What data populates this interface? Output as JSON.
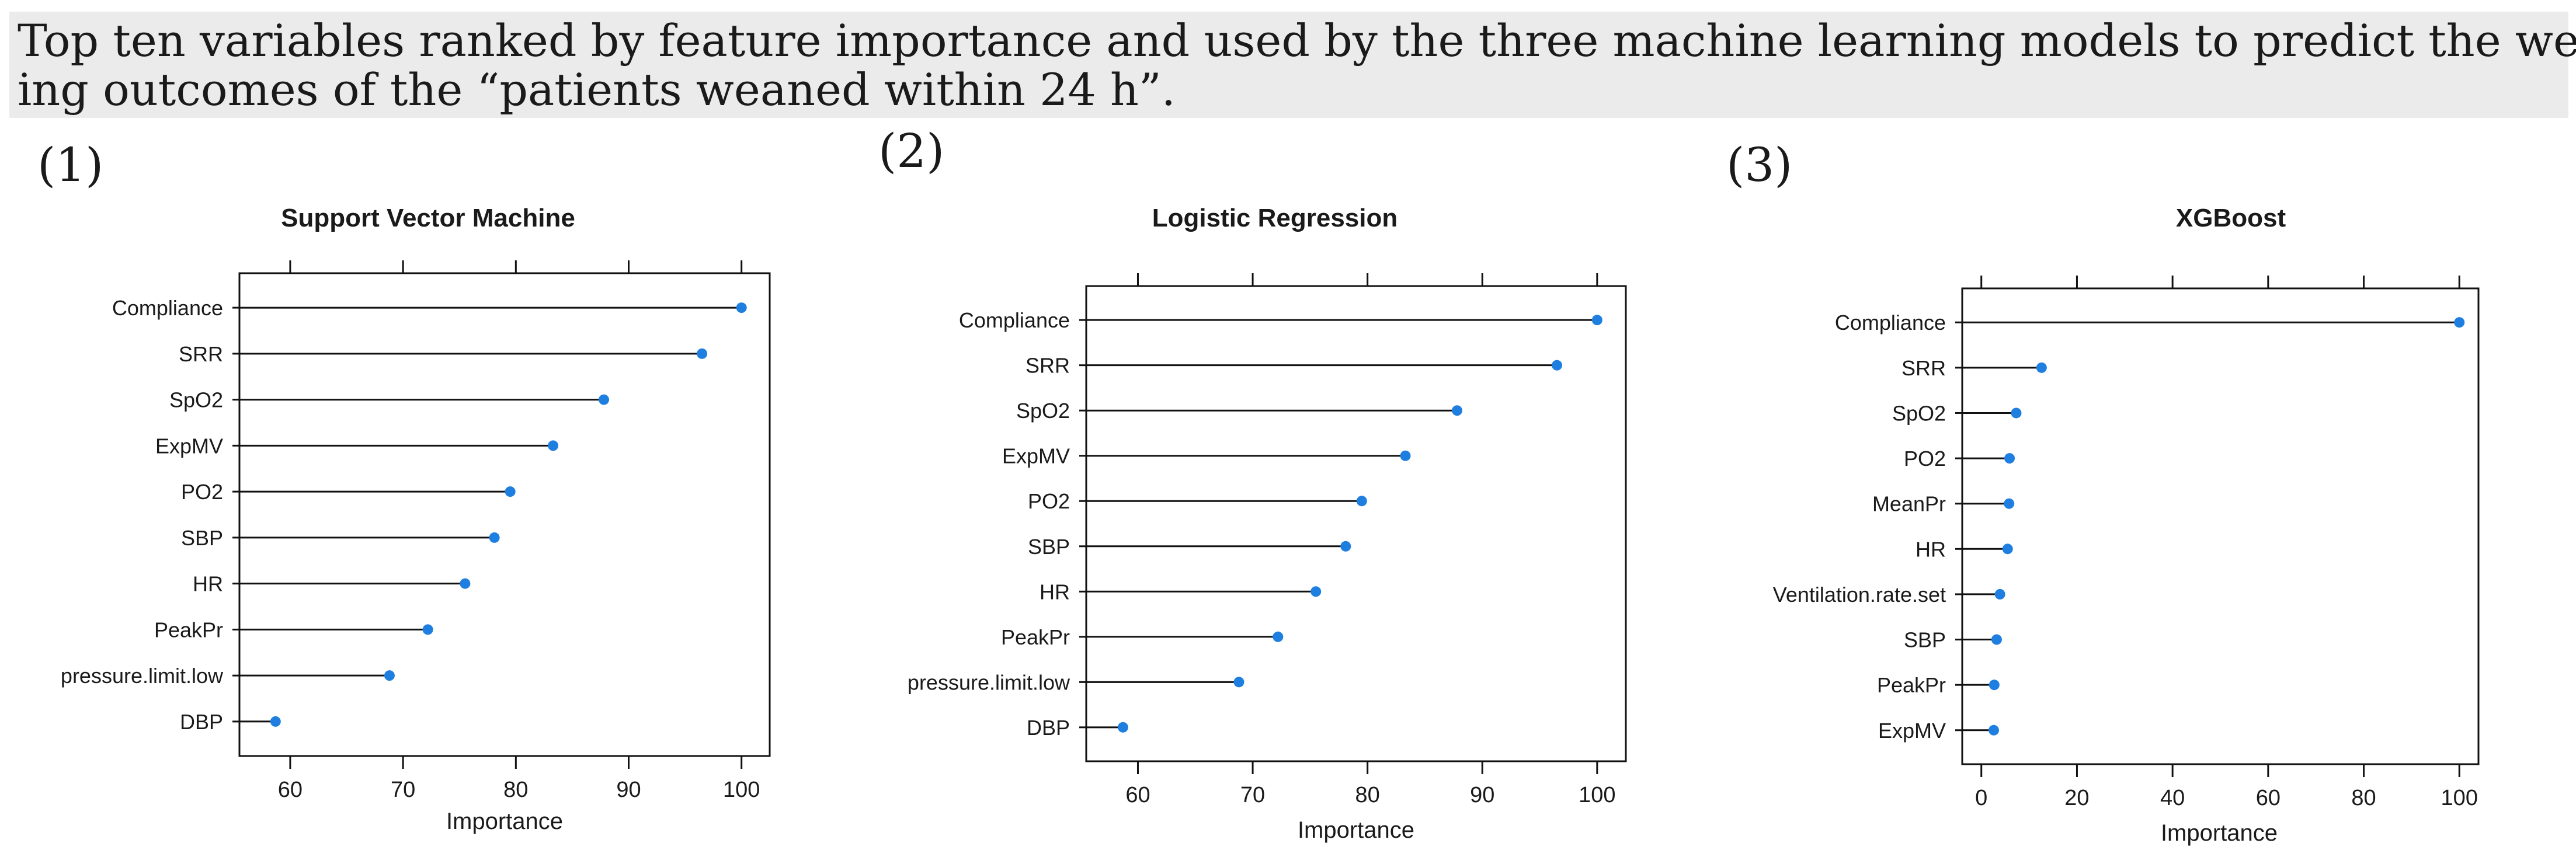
{
  "caption": {
    "line1": "Top ten variables ranked by feature importance and used by the three machine learning models to predict the wean-",
    "line2": "ing outcomes of the “patients weaned within 24 h”."
  },
  "panel_labels": [
    "(1)",
    "(2)",
    "(3)"
  ],
  "colors": {
    "point": "#1e7fe0",
    "line": "#111111",
    "axis": "#111111"
  },
  "chart_data": [
    {
      "type": "scatter",
      "title": "Support Vector Machine",
      "xlabel": "Importance",
      "ylabel": "",
      "categories": [
        "Compliance",
        "SRR",
        "SpO2",
        "ExpMV",
        "PO2",
        "SBP",
        "HR",
        "PeakPr",
        "pressure.limit.low",
        "DBP"
      ],
      "values": [
        100,
        96.5,
        87.8,
        83.3,
        79.5,
        78.1,
        75.5,
        72.2,
        68.8,
        58.7
      ],
      "xlim": [
        55.5,
        102.5
      ],
      "xticks": [
        60,
        70,
        80,
        90,
        100
      ],
      "grid": false,
      "legend": "none"
    },
    {
      "type": "scatter",
      "title": "Logistic Regression",
      "xlabel": "Importance",
      "ylabel": "",
      "categories": [
        "Compliance",
        "SRR",
        "SpO2",
        "ExpMV",
        "PO2",
        "SBP",
        "HR",
        "PeakPr",
        "pressure.limit.low",
        "DBP"
      ],
      "values": [
        100,
        96.5,
        87.8,
        83.3,
        79.5,
        78.1,
        75.5,
        72.2,
        68.8,
        58.7
      ],
      "xlim": [
        55.5,
        102.5
      ],
      "xticks": [
        60,
        70,
        80,
        90,
        100
      ],
      "grid": false,
      "legend": "none"
    },
    {
      "type": "scatter",
      "title": "XGBoost",
      "xlabel": "Importance",
      "ylabel": "",
      "categories": [
        "Compliance",
        "SRR",
        "SpO2",
        "PO2",
        "MeanPr",
        "HR",
        "Ventilation.rate.set",
        "SBP",
        "PeakPr",
        "ExpMV"
      ],
      "values": [
        100,
        12.6,
        7.3,
        5.9,
        5.8,
        5.5,
        3.9,
        3.2,
        2.7,
        2.6
      ],
      "xlim": [
        -4,
        104
      ],
      "xticks": [
        0,
        20,
        40,
        60,
        80,
        100
      ],
      "grid": false,
      "legend": "none"
    }
  ]
}
